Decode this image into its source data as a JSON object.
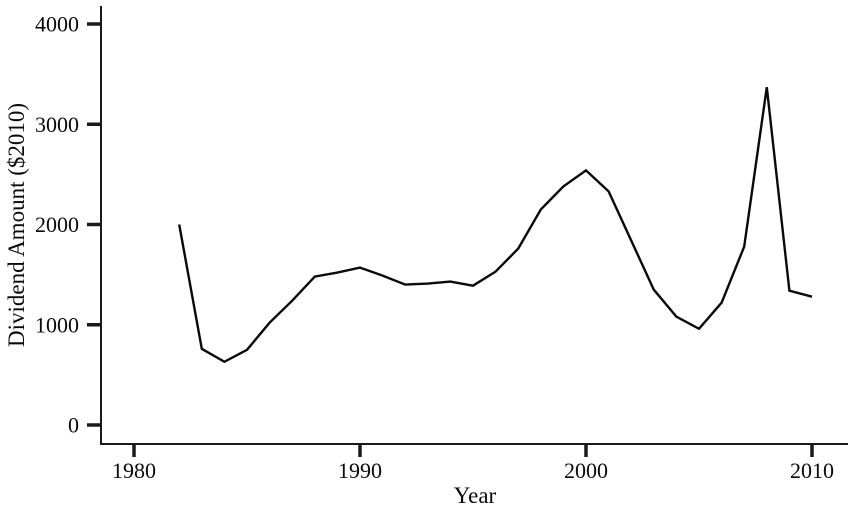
{
  "chart_data": {
    "type": "line",
    "title": "",
    "xlabel": "Year",
    "ylabel": "Dividend Amount ($2010)",
    "x_tick_labels": [
      "1980",
      "1990",
      "2000",
      "2010"
    ],
    "x_tick_values": [
      1980,
      1990,
      2000,
      2010
    ],
    "y_tick_labels": [
      "0",
      "1000",
      "2000",
      "3000",
      "4000"
    ],
    "y_tick_values": [
      0,
      1000,
      2000,
      3000,
      4000
    ],
    "xlim": [
      1978.5,
      2011.6
    ],
    "ylim": [
      -190,
      4180
    ],
    "grid": false,
    "legend_position": "none",
    "line_color": "#0a0a0a",
    "axis_color": "#1a1a1a",
    "background_color": "#ffffff",
    "series": [
      {
        "name": "Dividend Amount ($2010)",
        "x": [
          1982,
          1983,
          1984,
          1985,
          1986,
          1987,
          1988,
          1989,
          1990,
          1991,
          1992,
          1993,
          1994,
          1995,
          1996,
          1997,
          1998,
          1999,
          2000,
          2001,
          2002,
          2003,
          2004,
          2005,
          2006,
          2007,
          2008,
          2009,
          2010
        ],
        "values": [
          2000,
          760,
          630,
          750,
          1020,
          1240,
          1480,
          1520,
          1570,
          1490,
          1400,
          1410,
          1430,
          1390,
          1530,
          1760,
          2150,
          2380,
          2540,
          2330,
          1840,
          1350,
          1080,
          960,
          1220,
          1780,
          3370,
          1340,
          1280
        ]
      }
    ]
  }
}
